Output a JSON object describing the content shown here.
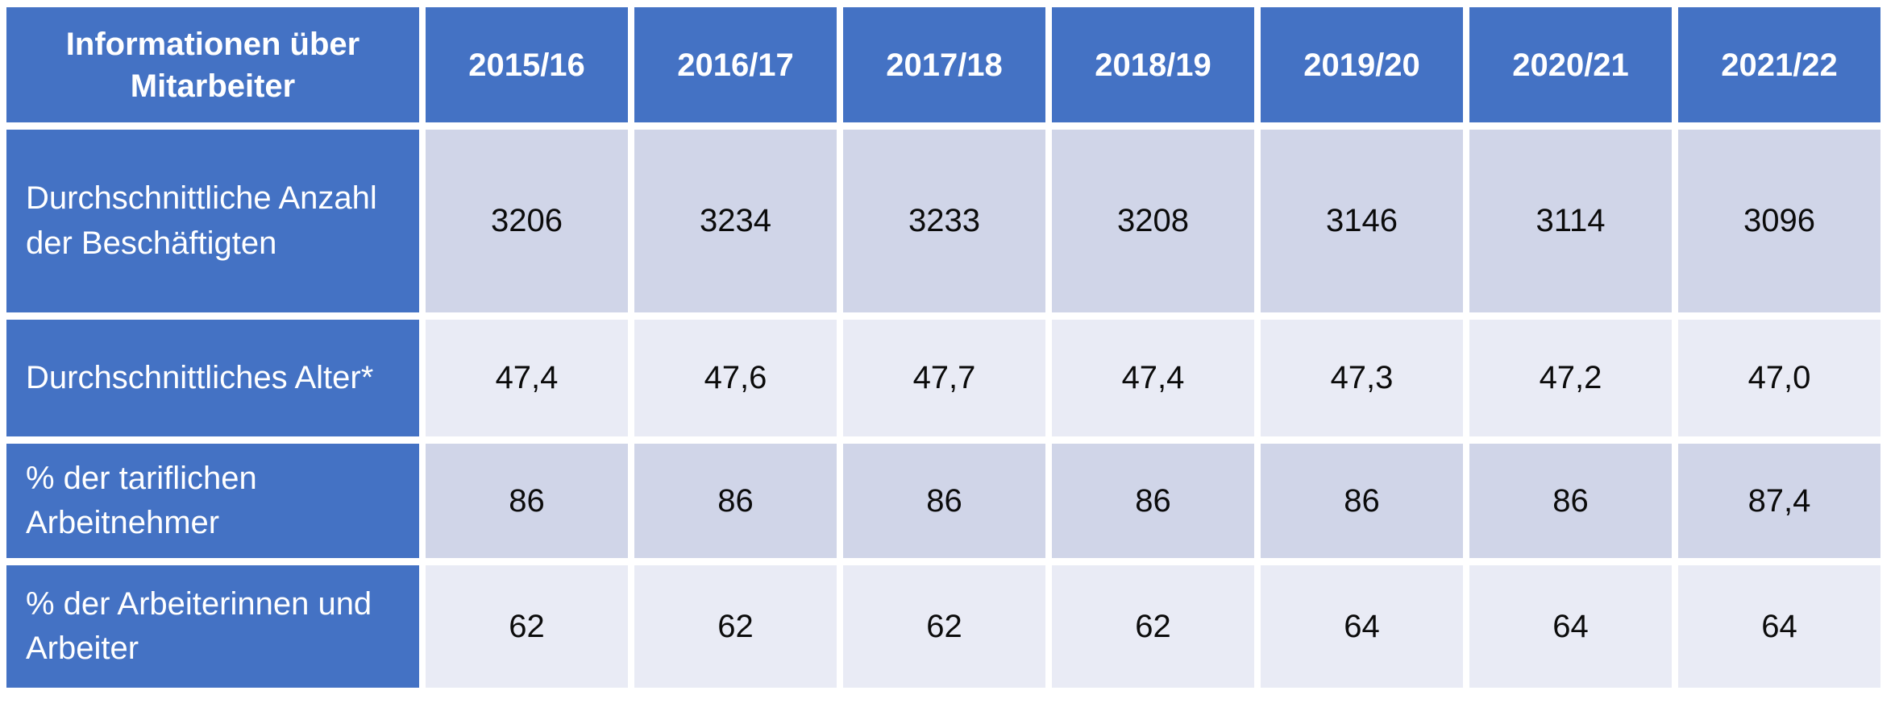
{
  "table": {
    "header": {
      "label": "Informationen über Mitarbeiter",
      "columns": [
        "2015/16",
        "2016/17",
        "2017/18",
        "2018/19",
        "2019/20",
        "2020/21",
        "2021/22"
      ]
    },
    "rows": [
      {
        "label": "Durchschnittliche Anzahl der Beschäftigten",
        "values": [
          "3206",
          "3234",
          "3233",
          "3208",
          "3146",
          "3114",
          "3096"
        ]
      },
      {
        "label": "Durchschnittliches Alter*",
        "values": [
          "47,4",
          "47,6",
          "47,7",
          "47,4",
          "47,3",
          "47,2",
          "47,0"
        ]
      },
      {
        "label": "% der tariflichen Arbeitnehmer",
        "values": [
          "86",
          "86",
          "86",
          "86",
          "86",
          "86",
          "87,4"
        ]
      },
      {
        "label": "% der Arbeiterinnen und Arbeiter",
        "values": [
          "62",
          "62",
          "62",
          "62",
          "64",
          "64",
          "64"
        ]
      }
    ],
    "colors": {
      "header_bg": "#4472C4",
      "band_dark": "#D0D5E8",
      "band_light": "#E9EBF5",
      "header_text": "#FFFFFF",
      "value_text": "#0B0B0B",
      "grid_gap": "#FFFFFF"
    }
  },
  "chart_data": {
    "type": "table",
    "title": "Informationen über Mitarbeiter",
    "categories": [
      "2015/16",
      "2016/17",
      "2017/18",
      "2018/19",
      "2019/20",
      "2020/21",
      "2021/22"
    ],
    "series": [
      {
        "name": "Durchschnittliche Anzahl der Beschäftigten",
        "values": [
          3206,
          3234,
          3233,
          3208,
          3146,
          3114,
          3096
        ]
      },
      {
        "name": "Durchschnittliches Alter*",
        "values": [
          47.4,
          47.6,
          47.7,
          47.4,
          47.3,
          47.2,
          47.0
        ]
      },
      {
        "name": "% der tariflichen Arbeitnehmer",
        "values": [
          86,
          86,
          86,
          86,
          86,
          86,
          87.4
        ]
      },
      {
        "name": "% der Arbeiterinnen und Arbeiter",
        "values": [
          62,
          62,
          62,
          62,
          64,
          64,
          64
        ]
      }
    ],
    "layout": {
      "banded_rows": true,
      "first_band": "dark",
      "header_style": "bold-white-on-blue"
    }
  }
}
